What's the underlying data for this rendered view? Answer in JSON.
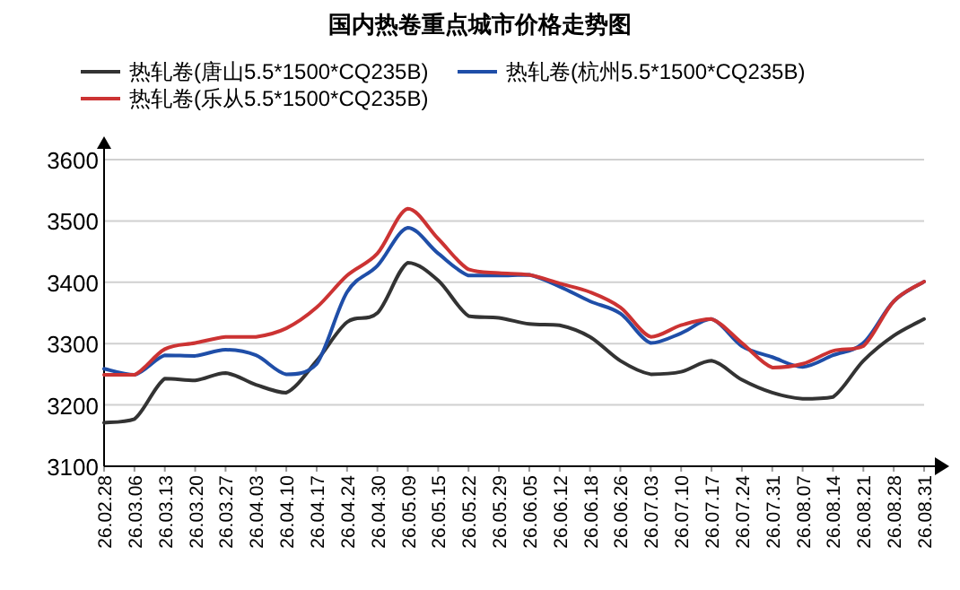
{
  "chart_data": {
    "type": "line",
    "title": "国内热卷重点城市价格走势图",
    "categories": [
      "26.02.28",
      "26.03.06",
      "26.03.13",
      "26.03.20",
      "26.03.27",
      "26.04.03",
      "26.04.10",
      "26.04.17",
      "26.04.24",
      "26.04.30",
      "26.05.09",
      "26.05.15",
      "26.05.22",
      "26.05.29",
      "26.06.05",
      "26.06.12",
      "26.06.18",
      "26.06.26",
      "26.07.03",
      "26.07.10",
      "26.07.17",
      "26.07.24",
      "26.07.31",
      "26.08.07",
      "26.08.14",
      "26.08.21",
      "26.08.28",
      "26.08.31"
    ],
    "series": [
      {
        "name": "热轧卷(唐山5.5*1500*CQ235B)",
        "color": "#333333",
        "values": [
          3171,
          3177,
          3243,
          3240,
          3252,
          3233,
          3220,
          3272,
          3335,
          3350,
          3432,
          3403,
          3345,
          3342,
          3332,
          3330,
          3311,
          3272,
          3250,
          3254,
          3272,
          3241,
          3220,
          3210,
          3213,
          3272,
          3313,
          3340
        ]
      },
      {
        "name": "热轧卷(杭州5.5*1500*CQ235B)",
        "color": "#1f4ea8",
        "values": [
          3259,
          3249,
          3281,
          3280,
          3290,
          3281,
          3250,
          3267,
          3384,
          3427,
          3489,
          3447,
          3411,
          3411,
          3412,
          3393,
          3369,
          3349,
          3301,
          3317,
          3340,
          3296,
          3278,
          3262,
          3281,
          3301,
          3369,
          3401
        ]
      },
      {
        "name": "热轧卷(乐从5.5*1500*CQ235B)",
        "color": "#cc3333",
        "values": [
          3249,
          3249,
          3291,
          3301,
          3311,
          3311,
          3325,
          3359,
          3411,
          3447,
          3520,
          3471,
          3421,
          3415,
          3412,
          3398,
          3384,
          3359,
          3311,
          3330,
          3340,
          3301,
          3261,
          3267,
          3288,
          3296,
          3369,
          3401
        ]
      }
    ],
    "ylim": [
      3100,
      3600
    ],
    "yticks": [
      3100,
      3200,
      3300,
      3400,
      3500,
      3600
    ],
    "grid": "y",
    "legend": "top"
  }
}
